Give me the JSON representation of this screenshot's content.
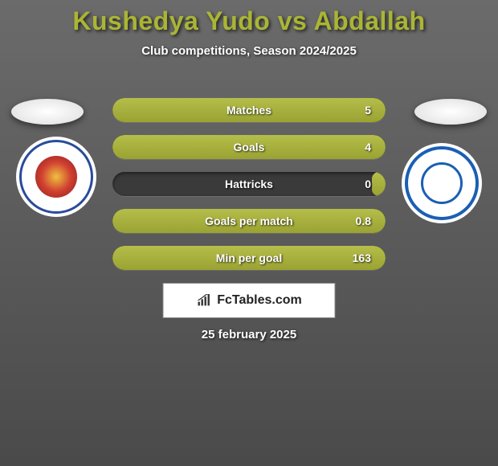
{
  "header": {
    "title": "Kushedya Yudo vs Abdallah",
    "subtitle": "Club competitions, Season 2024/2025",
    "title_color": "#aab534"
  },
  "stats": {
    "bars": [
      {
        "label": "Matches",
        "value": "5",
        "leftFill": 5,
        "rightFill": 100
      },
      {
        "label": "Goals",
        "value": "4",
        "leftFill": 5,
        "rightFill": 100
      },
      {
        "label": "Hattricks",
        "value": "0",
        "leftFill": 5,
        "rightFill": 5
      },
      {
        "label": "Goals per match",
        "value": "0.8",
        "leftFill": 5,
        "rightFill": 100
      },
      {
        "label": "Min per goal",
        "value": "163",
        "leftFill": 5,
        "rightFill": 100
      }
    ]
  },
  "styling": {
    "bar_fill_gradient_top": "#b5be4a",
    "bar_fill_gradient_bottom": "#9aa332",
    "bar_bg": "#3a3a3a",
    "bg_gradient_top": "#6b6b6b",
    "bg_gradient_bottom": "#4a4a4a"
  },
  "crests": {
    "left_name": "arema-crest",
    "right_name": "psis-crest"
  },
  "brand": {
    "text": "FcTables.com"
  },
  "footer": {
    "date": "25 february 2025"
  }
}
